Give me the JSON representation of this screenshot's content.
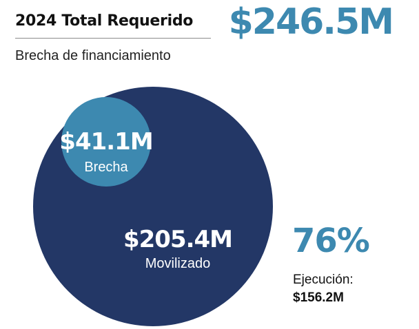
{
  "header": {
    "title": "2024 Total Requerido",
    "subtitle": "Brecha de financiamiento",
    "total": "$246.5M"
  },
  "colors": {
    "mobilized": "#233766",
    "gap": "#3d89b0",
    "accent": "#3d89b0",
    "text": "#111111"
  },
  "chart_data": {
    "type": "bubble",
    "unit": "$M",
    "total": 246.5,
    "total_label": "$246.5M",
    "bubbles": [
      {
        "name": "Movilizado",
        "value": 205.4,
        "value_label": "$205.4M"
      },
      {
        "name": "Brecha",
        "value": 41.1,
        "value_label": "$41.1M"
      }
    ]
  },
  "execution": {
    "percent": "76%",
    "label": "Ejecución:",
    "value": "$156.2M"
  }
}
